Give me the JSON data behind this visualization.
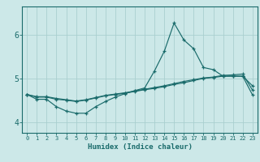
{
  "xlabel": "Humidex (Indice chaleur)",
  "background_color": "#cce8e8",
  "grid_color": "#aacfcf",
  "line_color": "#1a6b6b",
  "xlim": [
    -0.5,
    23.5
  ],
  "ylim": [
    3.75,
    6.65
  ],
  "xticks": [
    0,
    1,
    2,
    3,
    4,
    5,
    6,
    7,
    8,
    9,
    10,
    11,
    12,
    13,
    14,
    15,
    16,
    17,
    18,
    19,
    20,
    21,
    22,
    23
  ],
  "yticks": [
    4,
    5,
    6
  ],
  "x_values": [
    0,
    1,
    2,
    3,
    4,
    5,
    6,
    7,
    8,
    9,
    10,
    11,
    12,
    13,
    14,
    15,
    16,
    17,
    18,
    19,
    20,
    21,
    22,
    23
  ],
  "line1_y": [
    4.63,
    4.52,
    4.52,
    4.35,
    4.25,
    4.2,
    4.2,
    4.35,
    4.47,
    4.57,
    4.65,
    4.72,
    4.78,
    5.17,
    5.62,
    6.27,
    5.88,
    5.68,
    5.25,
    5.2,
    5.05,
    5.05,
    5.05,
    4.83
  ],
  "line2_y": [
    4.63,
    4.57,
    4.57,
    4.52,
    4.5,
    4.47,
    4.5,
    4.55,
    4.6,
    4.63,
    4.66,
    4.7,
    4.74,
    4.77,
    4.81,
    4.86,
    4.9,
    4.95,
    5.0,
    5.02,
    5.05,
    5.05,
    5.05,
    4.62
  ],
  "line3_y": [
    4.63,
    4.58,
    4.58,
    4.54,
    4.51,
    4.48,
    4.51,
    4.56,
    4.61,
    4.64,
    4.67,
    4.71,
    4.75,
    4.79,
    4.83,
    4.88,
    4.93,
    4.97,
    5.01,
    5.03,
    5.07,
    5.08,
    5.1,
    4.73
  ]
}
